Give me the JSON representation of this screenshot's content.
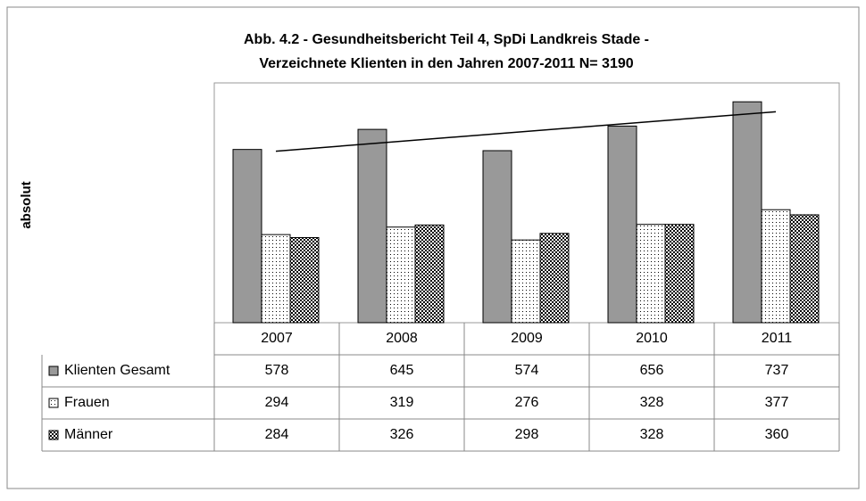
{
  "chart_data": {
    "type": "bar",
    "title": "Abb. 4.2 - Gesundheitsbericht Teil 4, SpDi Landkreis Stade -",
    "subtitle": "Verzeichnete Klienten in den Jahren 2007-2011  N= 3190",
    "ylabel": "absolut",
    "categories": [
      "2007",
      "2008",
      "2009",
      "2010",
      "2011"
    ],
    "series": [
      {
        "name": "Klienten Gesamt",
        "color": "#999999",
        "pattern": "solid",
        "values": [
          578,
          645,
          574,
          656,
          737
        ]
      },
      {
        "name": "Frauen",
        "color": "#ffffff",
        "pattern": "sparse-dots",
        "values": [
          294,
          319,
          276,
          328,
          377
        ]
      },
      {
        "name": "Männer",
        "color": "#ffffff",
        "pattern": "dense-dots",
        "values": [
          284,
          326,
          298,
          328,
          360
        ]
      }
    ],
    "ylim": [
      0,
      800
    ],
    "trendline": "Klienten Gesamt",
    "data_table": true
  }
}
